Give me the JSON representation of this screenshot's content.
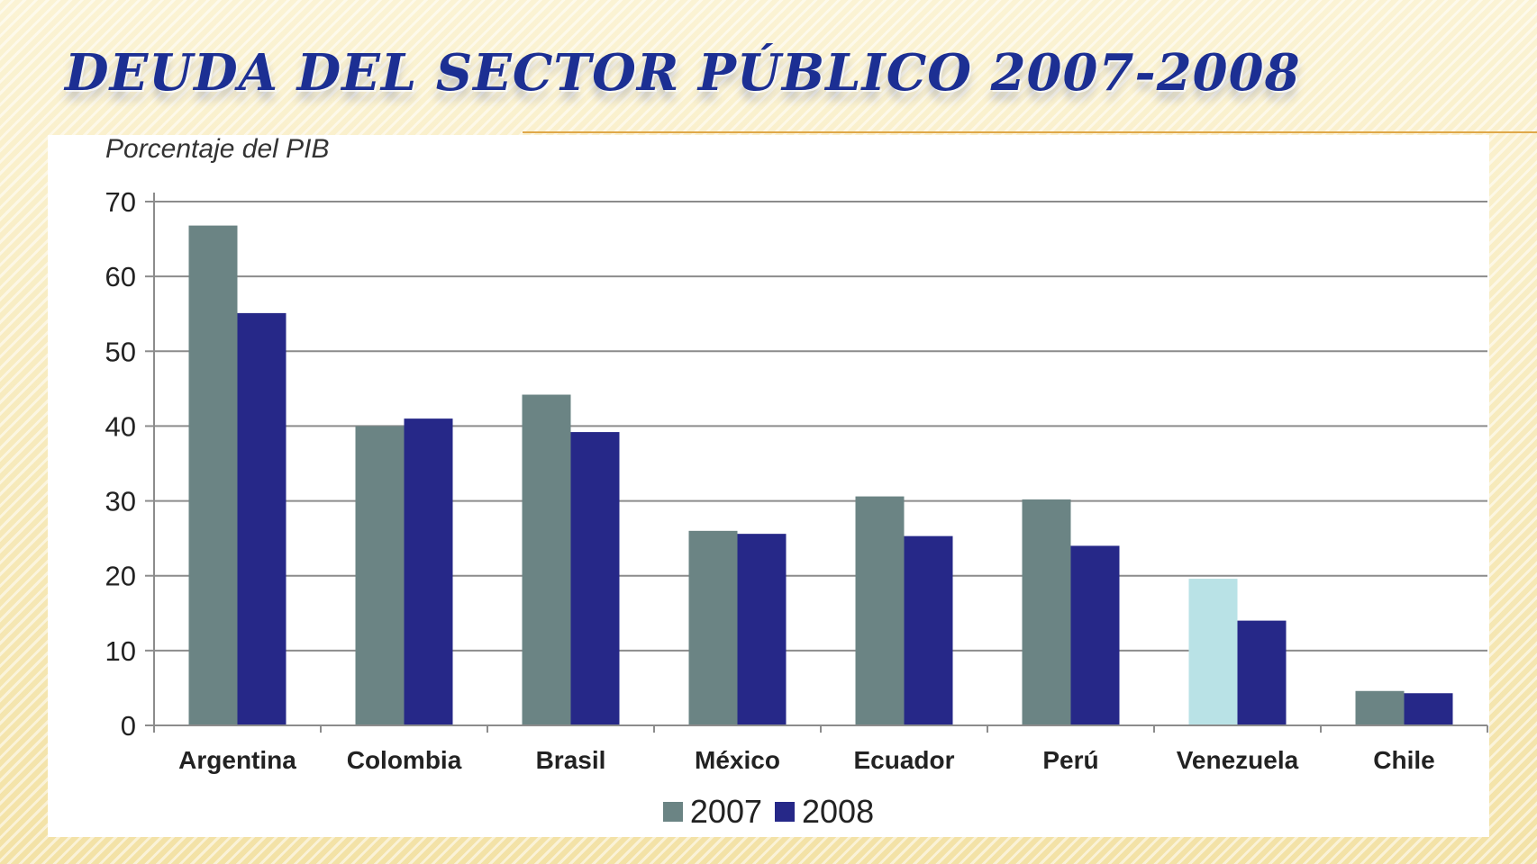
{
  "slide": {
    "title": "DEUDA DEL SECTOR PÚBLICO 2007-2008"
  },
  "chart_data": {
    "type": "bar",
    "ylabel": "Porcentaje del PIB",
    "xlabel": "",
    "ylim": [
      0,
      70
    ],
    "yticks": [
      0,
      10,
      20,
      30,
      40,
      50,
      60,
      70
    ],
    "grid": true,
    "legend_position": "bottom-center",
    "categories": [
      "Argentina",
      "Colombia",
      "Brasil",
      "México",
      "Ecuador",
      "Perú",
      "Venezuela",
      "Chile"
    ],
    "series": [
      {
        "name": "2007",
        "color": "#6b8484",
        "values": [
          66.8,
          40,
          44.2,
          26,
          30.6,
          30.2,
          19.6,
          4.6
        ]
      },
      {
        "name": "2008",
        "color": "#262888",
        "values": [
          55.1,
          41,
          39.2,
          25.6,
          25.3,
          24,
          14,
          4.3
        ]
      }
    ],
    "highlight_bars": [
      {
        "series": "2007",
        "category": "Venezuela",
        "color": "#b9e2e6"
      }
    ]
  }
}
